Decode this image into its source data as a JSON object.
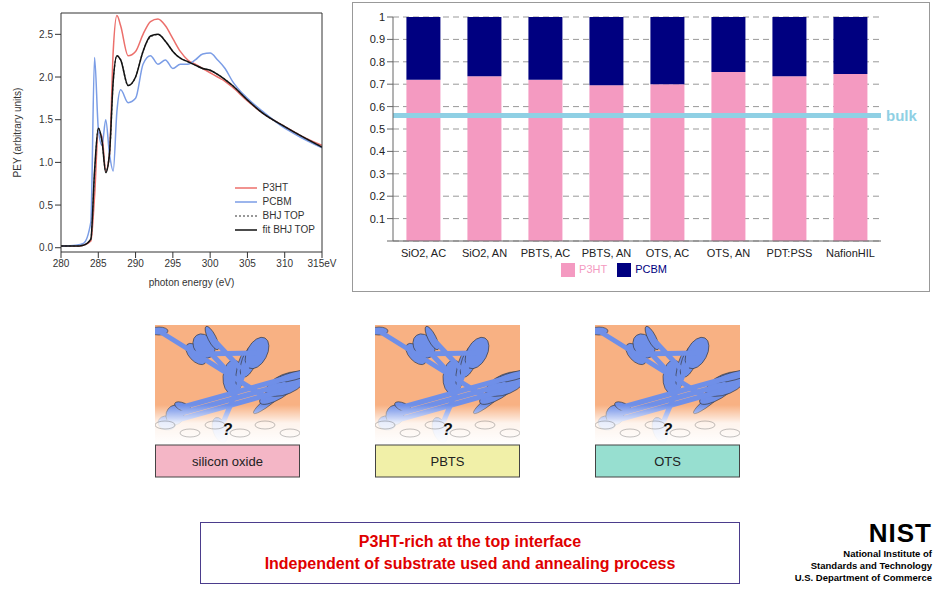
{
  "chart_data": [
    {
      "type": "line",
      "x_label": "photon energy (eV)",
      "y_label": "PEY (arbitrary units)",
      "x": [
        280,
        282,
        283,
        284,
        284.5,
        285,
        285.5,
        286,
        286.5,
        287,
        287.5,
        288,
        289,
        290,
        291,
        292,
        293,
        294,
        295,
        296,
        297,
        298,
        299,
        300,
        301,
        302,
        303,
        305,
        307,
        310,
        312,
        315
      ],
      "series": [
        {
          "name": "P3HT",
          "color": "#ec6f6b",
          "line_style": "solid",
          "values": [
            0.02,
            0.02,
            0.03,
            0.08,
            0.6,
            1.35,
            1.3,
            0.9,
            1.1,
            2.3,
            2.72,
            2.6,
            2.25,
            2.3,
            2.5,
            2.65,
            2.68,
            2.6,
            2.45,
            2.3,
            2.2,
            2.15,
            2.1,
            2.05,
            2.0,
            1.95,
            1.88,
            1.72,
            1.58,
            1.42,
            1.32,
            1.2
          ]
        },
        {
          "name": "PCBM",
          "color": "#7b9de6",
          "line_style": "solid",
          "values": [
            0.02,
            0.03,
            0.05,
            0.3,
            2.23,
            1.4,
            1.2,
            1.5,
            1.1,
            0.9,
            1.6,
            1.85,
            1.7,
            1.75,
            2.15,
            2.25,
            2.15,
            2.2,
            2.1,
            2.15,
            2.15,
            2.2,
            2.27,
            2.28,
            2.2,
            2.1,
            1.95,
            1.75,
            1.6,
            1.4,
            1.3,
            1.17
          ]
        },
        {
          "name": "BHJ TOP",
          "color": "#777777",
          "line_style": "dotted",
          "values": [
            0.02,
            0.02,
            0.03,
            0.1,
            0.85,
            1.4,
            1.25,
            0.9,
            1.1,
            1.95,
            2.25,
            2.2,
            1.9,
            2.0,
            2.3,
            2.47,
            2.5,
            2.42,
            2.3,
            2.22,
            2.18,
            2.14,
            2.1,
            2.08,
            2.03,
            1.97,
            1.9,
            1.73,
            1.58,
            1.42,
            1.32,
            1.18
          ]
        },
        {
          "name": "fit BHJ TOP",
          "color": "#111111",
          "line_style": "solid",
          "values": [
            0.02,
            0.02,
            0.03,
            0.1,
            0.9,
            1.4,
            1.25,
            0.88,
            1.1,
            1.95,
            2.25,
            2.2,
            1.9,
            2.0,
            2.3,
            2.48,
            2.5,
            2.42,
            2.3,
            2.22,
            2.18,
            2.14,
            2.1,
            2.08,
            2.03,
            1.97,
            1.9,
            1.73,
            1.58,
            1.42,
            1.32,
            1.18
          ]
        }
      ],
      "xlim": [
        280,
        315
      ],
      "xticks": [
        280,
        285,
        290,
        295,
        300,
        305,
        310,
        {
          "value": 315,
          "label": "315eV"
        }
      ],
      "ylim": [
        -0.05,
        2.75
      ],
      "yticks": [
        {
          "value": 0,
          "label": "0.0"
        },
        0.5,
        {
          "value": 1,
          "label": "1.0"
        },
        1.5,
        {
          "value": 2,
          "label": "2.0"
        },
        2.5
      ],
      "legend": "lower right"
    },
    {
      "type": "bar",
      "stacked": true,
      "grid": true,
      "legend": "bottom",
      "categories": [
        "SiO2, AC",
        "SiO2, AN",
        "PBTS, AC",
        "PBTS, AN",
        "OTS, AC",
        "OTS, AN",
        "PDT:PSS",
        "NafionHIL"
      ],
      "series": [
        {
          "name": "P3HT",
          "color": "#f49ac1",
          "values": [
            0.72,
            0.735,
            0.72,
            0.695,
            0.7,
            0.755,
            0.735,
            0.745
          ]
        },
        {
          "name": "PCBM",
          "color": "#000080",
          "values": [
            0.28,
            0.265,
            0.28,
            0.305,
            0.3,
            0.245,
            0.265,
            0.255
          ]
        }
      ],
      "ylim": [
        0,
        1
      ],
      "yticks": [
        0,
        0.1,
        0.2,
        0.3,
        0.4,
        0.5,
        0.6,
        0.7,
        0.8,
        0.9,
        1
      ],
      "annotations": [
        {
          "label": "bulk",
          "y": 0.56,
          "color": "#8fd0e4"
        }
      ]
    }
  ],
  "diagrams": [
    {
      "substrate": "silicon oxide",
      "color": "#f4b6c6",
      "region_label": "?"
    },
    {
      "substrate": "PBTS",
      "color": "#f1f0a8",
      "region_label": "?"
    },
    {
      "substrate": "OTS",
      "color": "#97dfd0",
      "region_label": "?"
    }
  ],
  "caption": {
    "lines": [
      "P3HT-rich at the top interface",
      "Independent of substrate used and annealing process"
    ]
  },
  "logo": {
    "name": "NIST",
    "lines": [
      "National Institute of",
      "Standards and Technology",
      "U.S. Department of Commerce"
    ]
  }
}
